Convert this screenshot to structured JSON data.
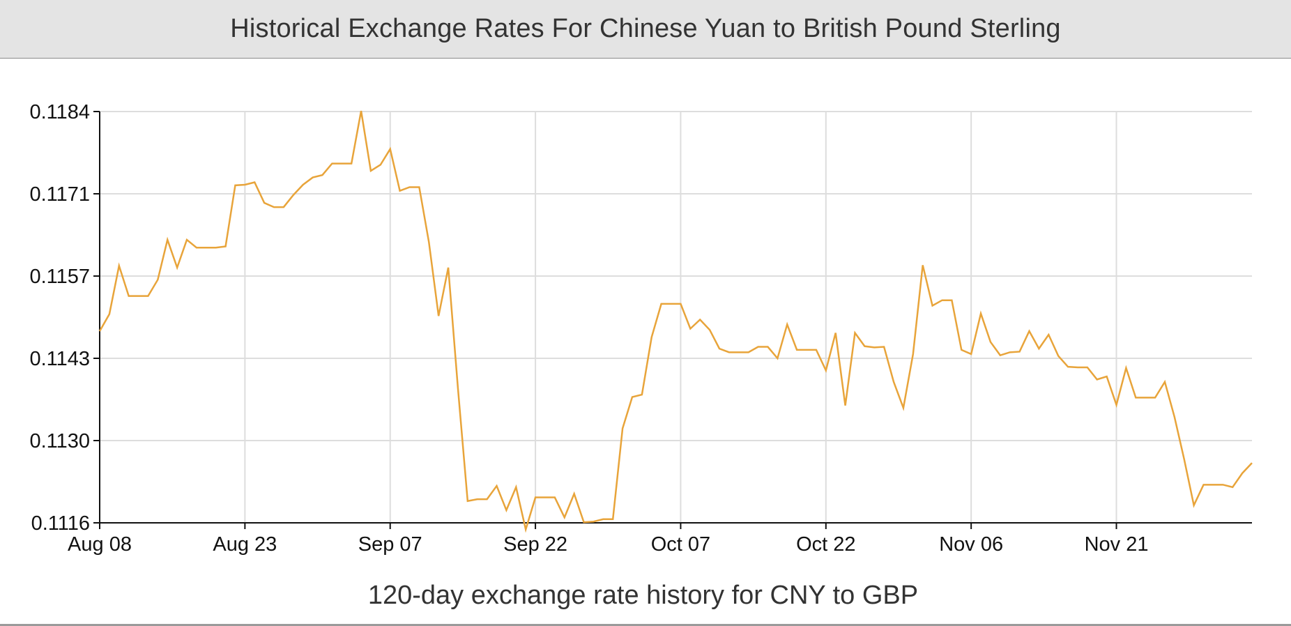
{
  "header": {
    "title": "Historical Exchange Rates For Chinese Yuan to British Pound Sterling"
  },
  "colors": {
    "line": "#e8a43a",
    "grid": "#dddddd",
    "axis": "#111111",
    "header_bg": "#e4e4e4"
  },
  "chart_data": {
    "type": "line",
    "title": "Historical Exchange Rates For Chinese Yuan to British Pound Sterling",
    "subtitle": "120-day exchange rate history for CNY to GBP",
    "xlabel": "",
    "ylabel": "",
    "x_start": "Aug 08",
    "x_ticks": [
      "Aug 08",
      "Aug 23",
      "Sep 07",
      "Sep 22",
      "Oct 07",
      "Oct 22",
      "Nov 06",
      "Nov 21"
    ],
    "y_ticks": [
      "0.1116",
      "0.1130",
      "0.1143",
      "0.1157",
      "0.1171",
      "0.1184"
    ],
    "ylim": [
      0.1116,
      0.1184
    ],
    "grid": true,
    "series": [
      {
        "values": [
          0.11477,
          0.11505,
          0.11585,
          0.11535,
          0.11535,
          0.11535,
          0.11562,
          0.11628,
          0.11582,
          0.11628,
          0.11615,
          0.11615,
          0.11615,
          0.11617,
          0.11718,
          0.11719,
          0.11723,
          0.11689,
          0.11682,
          0.11682,
          0.11702,
          0.11719,
          0.11731,
          0.11735,
          0.11754,
          0.11754,
          0.11754,
          0.11841,
          0.11742,
          0.11752,
          0.11778,
          0.11709,
          0.11715,
          0.11715,
          0.11624,
          0.11502,
          0.11582,
          0.11382,
          0.11196,
          0.11199,
          0.11199,
          0.11221,
          0.11181,
          0.11219,
          0.11149,
          0.11202,
          0.11202,
          0.11202,
          0.11169,
          0.11208,
          0.11161,
          0.11162,
          0.11166,
          0.11166,
          0.11316,
          0.11368,
          0.11372,
          0.11467,
          0.11522,
          0.11522,
          0.11522,
          0.11481,
          0.11496,
          0.11479,
          0.11448,
          0.11442,
          0.11442,
          0.11442,
          0.11451,
          0.11451,
          0.11432,
          0.11488,
          0.11446,
          0.11446,
          0.11446,
          0.11412,
          0.11474,
          0.11354,
          0.11474,
          0.11452,
          0.1145,
          0.11451,
          0.11393,
          0.1135,
          0.11439,
          0.11586,
          0.11519,
          0.11528,
          0.11528,
          0.11446,
          0.11439,
          0.11506,
          0.11459,
          0.11437,
          0.11442,
          0.11443,
          0.11477,
          0.11448,
          0.11471,
          0.11436,
          0.11418,
          0.11417,
          0.11417,
          0.11397,
          0.11402,
          0.11355,
          0.11416,
          0.11367,
          0.11367,
          0.11367,
          0.11393,
          0.11335,
          0.11265,
          0.11189,
          0.11223,
          0.11223,
          0.11223,
          0.11219,
          0.11242,
          0.11259
        ]
      }
    ]
  }
}
